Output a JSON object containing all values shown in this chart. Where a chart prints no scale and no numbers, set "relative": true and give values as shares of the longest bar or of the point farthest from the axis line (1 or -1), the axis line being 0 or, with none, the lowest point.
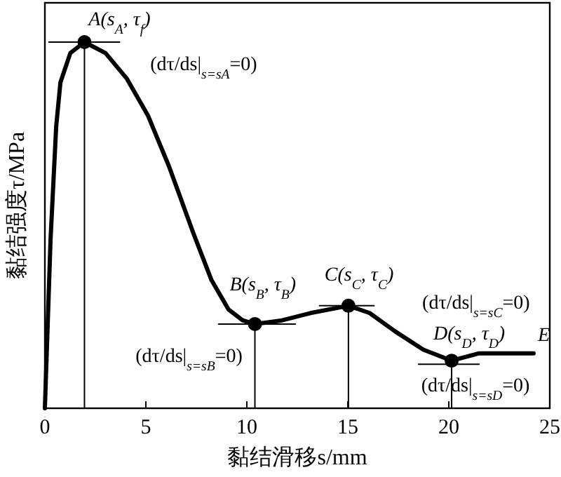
{
  "chart_data": {
    "type": "line",
    "xlabel": "黏结滑移s/mm",
    "ylabel": "黏结强度τ/MPa",
    "relative": true,
    "xlim": [
      0,
      25
    ],
    "xticks": [
      0,
      5,
      10,
      15,
      20,
      25
    ],
    "series": [
      {
        "color": "#000000",
        "x": [
          0,
          0.28,
          0.56,
          0.77,
          1.26,
          1.96,
          3.0,
          4.06,
          5.1,
          6.15,
          7.34,
          8.25,
          9.09,
          9.79,
          10.4,
          11.75,
          13.15,
          15.03,
          16.08,
          17.34,
          18.74,
          20.14,
          21.5,
          24.2
        ],
        "values": [
          0,
          0.46,
          0.77,
          0.89,
          0.97,
          1.0,
          0.97,
          0.9,
          0.8,
          0.66,
          0.48,
          0.35,
          0.27,
          0.24,
          0.23,
          0.24,
          0.26,
          0.28,
          0.26,
          0.21,
          0.16,
          0.13,
          0.15,
          0.15
        ]
      },
      {
        "type": "lollipop",
        "color": "#000000",
        "marker": "circle",
        "x": [
          1.96,
          10.4,
          15.03,
          20.14
        ],
        "values": [
          1.0,
          0.23,
          0.28,
          0.13
        ]
      },
      {
        "type": "line",
        "color": "#000000",
        "x": [
          0.2,
          3.7
        ],
        "values": [
          1.0,
          1.0
        ]
      },
      {
        "type": "line",
        "color": "#000000",
        "x": [
          8.6,
          12.4
        ],
        "values": [
          0.23,
          0.23
        ]
      },
      {
        "type": "line",
        "color": "#000000",
        "x": [
          13.6,
          16.3
        ],
        "values": [
          0.28,
          0.28
        ]
      },
      {
        "type": "line",
        "color": "#000000",
        "x": [
          18.5,
          21.5
        ],
        "values": [
          0.12,
          0.12
        ]
      }
    ],
    "annotations": [
      {
        "text": "A(s$_{A}$, τ$_{f}$)",
        "x": 1.96,
        "y": 1.0
      },
      "(dτ/ds|$_{s=sA}$=0)",
      {
        "text": "B(s$_{B}$, τ$_{B}$)",
        "x": 10.4,
        "y": 0.23
      },
      "(dτ/ds|$_{s=sB}$=0)",
      {
        "text": "C(s$_{C}$, τ$_{C}$)",
        "x": 15.03,
        "y": 0.28
      },
      "(dτ/ds|$_{s=sC}$=0)",
      {
        "text": "D(s$_{D}$, τ$_{D}$)",
        "x": 20.14,
        "y": 0.13
      },
      "(dτ/ds|$_{s=sD}$=0)",
      {
        "text": "E",
        "x": 24.2,
        "y": 0.15
      }
    ]
  }
}
